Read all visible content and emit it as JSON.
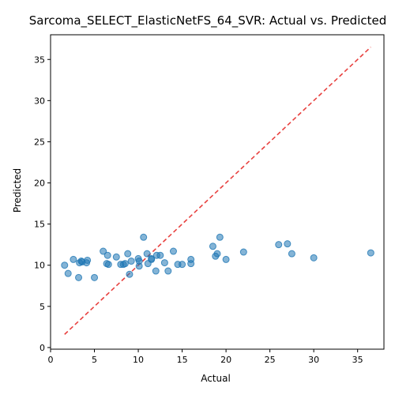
{
  "chart_data": {
    "type": "scatter",
    "title": "Sarcoma_SELECT_ElasticNetFS_64_SVR: Actual vs. Predicted",
    "xlabel": "Actual",
    "ylabel": "Predicted",
    "xlim": [
      0,
      38
    ],
    "ylim": [
      -0.2,
      38
    ],
    "xticks": [
      0,
      5,
      10,
      15,
      20,
      25,
      30,
      35
    ],
    "yticks": [
      0,
      5,
      10,
      15,
      20,
      25,
      30,
      35
    ],
    "grid": false,
    "reference_line": {
      "style": "dashed",
      "color": "#e8413f",
      "from": [
        1.6,
        1.6
      ],
      "to": [
        36.5,
        36.5
      ]
    },
    "series": [
      {
        "color": "#1f77b4",
        "points": [
          [
            1.6,
            10.0
          ],
          [
            2.0,
            9.0
          ],
          [
            2.6,
            10.7
          ],
          [
            3.2,
            8.5
          ],
          [
            3.3,
            10.3
          ],
          [
            3.5,
            10.5
          ],
          [
            3.6,
            10.4
          ],
          [
            4.1,
            10.3
          ],
          [
            4.2,
            10.6
          ],
          [
            5.0,
            8.5
          ],
          [
            6.0,
            11.7
          ],
          [
            6.4,
            10.2
          ],
          [
            6.5,
            11.2
          ],
          [
            6.6,
            10.1
          ],
          [
            7.5,
            11.0
          ],
          [
            8.0,
            10.1
          ],
          [
            8.3,
            10.1
          ],
          [
            8.5,
            10.2
          ],
          [
            8.8,
            11.4
          ],
          [
            9.0,
            8.9
          ],
          [
            9.2,
            10.5
          ],
          [
            10.0,
            10.8
          ],
          [
            10.1,
            10.5
          ],
          [
            10.1,
            9.9
          ],
          [
            10.6,
            13.4
          ],
          [
            11.0,
            11.4
          ],
          [
            11.1,
            10.2
          ],
          [
            11.5,
            10.7
          ],
          [
            11.5,
            10.8
          ],
          [
            12.0,
            9.3
          ],
          [
            12.1,
            11.2
          ],
          [
            12.5,
            11.2
          ],
          [
            13.0,
            10.3
          ],
          [
            13.4,
            9.3
          ],
          [
            14.0,
            11.7
          ],
          [
            14.5,
            10.1
          ],
          [
            15.0,
            10.1
          ],
          [
            16.0,
            10.7
          ],
          [
            16.0,
            10.2
          ],
          [
            18.5,
            12.3
          ],
          [
            18.8,
            11.1
          ],
          [
            19.0,
            11.4
          ],
          [
            19.3,
            13.4
          ],
          [
            20.0,
            10.7
          ],
          [
            22.0,
            11.6
          ],
          [
            26.0,
            12.5
          ],
          [
            27.0,
            12.6
          ],
          [
            27.5,
            11.4
          ],
          [
            30.0,
            10.9
          ],
          [
            36.5,
            11.5
          ]
        ]
      }
    ]
  }
}
